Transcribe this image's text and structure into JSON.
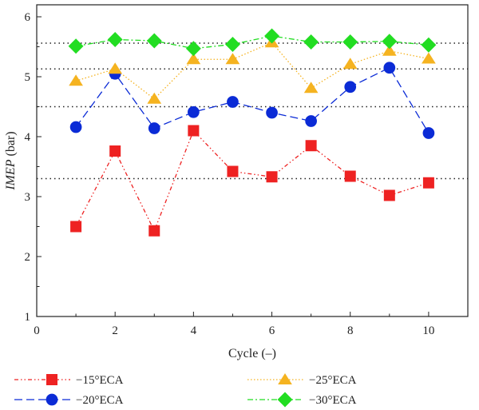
{
  "chart_data": {
    "type": "line",
    "xlabel": "Cycle (–)",
    "ylabel_italic": "IMEP",
    "ylabel_unit": " (bar)",
    "xlim": [
      0,
      11
    ],
    "ylim": [
      1,
      6.2
    ],
    "x_ticks": [
      "0",
      "2",
      "4",
      "6",
      "8",
      "10"
    ],
    "y_ticks": [
      "1",
      "2",
      "3",
      "4",
      "5",
      "6"
    ],
    "x": [
      1,
      2,
      3,
      4,
      5,
      6,
      7,
      8,
      9,
      10
    ],
    "series": [
      {
        "name": "−15°ECA",
        "color": "#ee2222",
        "marker": "square",
        "line_style": "dash-dot-dot",
        "mean_line": 3.3,
        "values": [
          2.5,
          3.76,
          2.43,
          4.1,
          3.42,
          3.33,
          3.85,
          3.34,
          3.02,
          3.23
        ]
      },
      {
        "name": "−20°ECA",
        "color": "#0b2bd6",
        "marker": "circle",
        "line_style": "long-dash",
        "mean_line": 4.5,
        "values": [
          4.16,
          5.05,
          4.14,
          4.41,
          4.58,
          4.4,
          4.26,
          4.83,
          5.15,
          4.06
        ]
      },
      {
        "name": "−25°ECA",
        "color": "#f5b320",
        "marker": "triangle",
        "line_style": "dotted",
        "mean_line": 5.13,
        "values": [
          4.93,
          5.13,
          4.63,
          5.29,
          5.29,
          5.57,
          4.81,
          5.21,
          5.43,
          5.3
        ]
      },
      {
        "name": "−30°ECA",
        "color": "#22dd22",
        "marker": "diamond",
        "line_style": "dash-dot",
        "mean_line": 5.56,
        "values": [
          5.51,
          5.62,
          5.6,
          5.47,
          5.54,
          5.68,
          5.58,
          5.58,
          5.59,
          5.53
        ]
      }
    ],
    "grid": false,
    "legend_position": "bottom"
  }
}
